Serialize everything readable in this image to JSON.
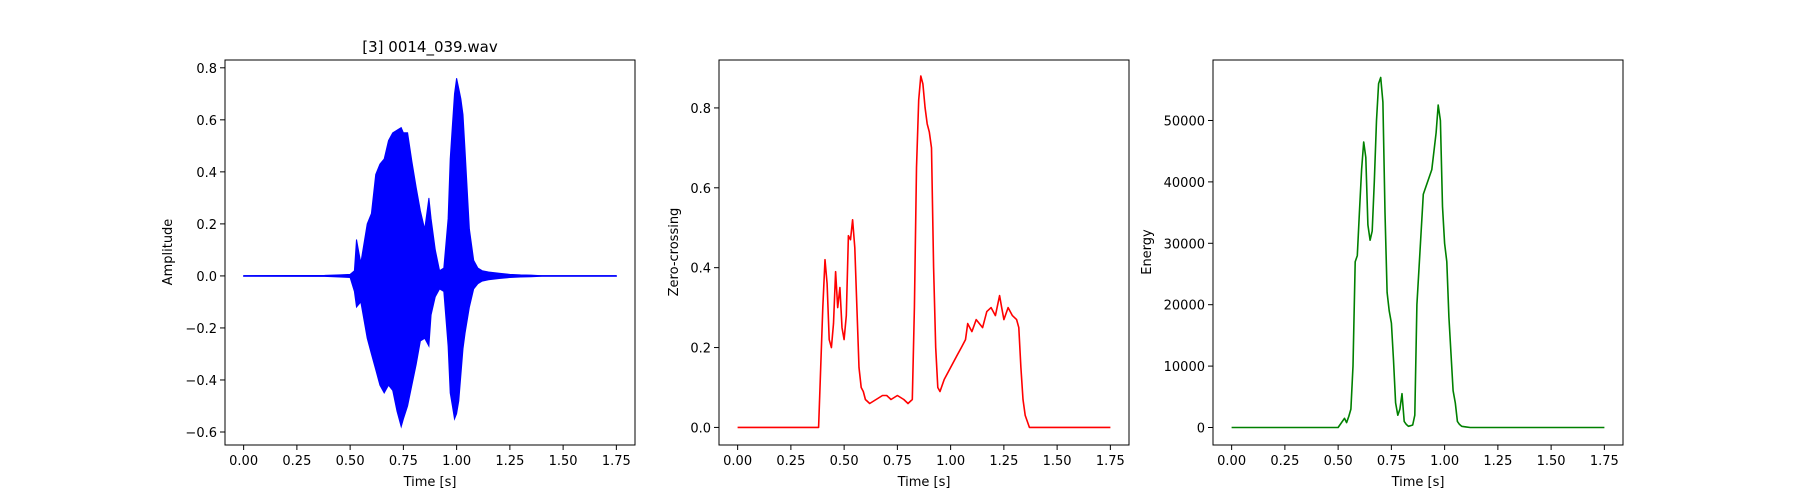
{
  "chart_data": [
    {
      "type": "line",
      "title": "[3] 0014_039.wav",
      "xlabel": "Time [s]",
      "ylabel": "Amplitude",
      "xlim": [
        -0.0875,
        1.8375
      ],
      "ylim": [
        -0.65,
        0.83
      ],
      "xticks": [
        0.0,
        0.25,
        0.5,
        0.75,
        1.0,
        1.25,
        1.5,
        1.75
      ],
      "xtick_labels": [
        "0.00",
        "0.25",
        "0.50",
        "0.75",
        "1.00",
        "1.25",
        "1.50",
        "1.75"
      ],
      "yticks": [
        -0.6,
        -0.4,
        -0.2,
        0.0,
        0.2,
        0.4,
        0.6,
        0.8
      ],
      "ytick_labels": [
        "−0.6",
        "−0.4",
        "−0.2",
        "0.0",
        "0.2",
        "0.4",
        "0.6",
        "0.8"
      ],
      "color": "#0000ff",
      "grid": false,
      "series": [
        {
          "style": "envelope",
          "x": [
            0.0,
            0.38,
            0.45,
            0.5,
            0.52,
            0.53,
            0.55,
            0.58,
            0.6,
            0.62,
            0.64,
            0.66,
            0.68,
            0.7,
            0.72,
            0.74,
            0.75,
            0.77,
            0.79,
            0.81,
            0.83,
            0.85,
            0.87,
            0.88,
            0.9,
            0.92,
            0.94,
            0.96,
            0.97,
            0.98,
            0.99,
            1.0,
            1.01,
            1.02,
            1.03,
            1.04,
            1.06,
            1.08,
            1.1,
            1.12,
            1.15,
            1.2,
            1.25,
            1.3,
            1.35,
            1.4,
            1.75
          ],
          "upper": [
            0.001,
            0.002,
            0.004,
            0.006,
            0.02,
            0.14,
            0.05,
            0.2,
            0.24,
            0.39,
            0.43,
            0.45,
            0.52,
            0.55,
            0.56,
            0.57,
            0.55,
            0.55,
            0.44,
            0.34,
            0.25,
            0.18,
            0.3,
            0.22,
            0.1,
            0.02,
            0.03,
            0.22,
            0.45,
            0.58,
            0.7,
            0.76,
            0.72,
            0.68,
            0.62,
            0.48,
            0.18,
            0.06,
            0.03,
            0.02,
            0.015,
            0.01,
            0.006,
            0.004,
            0.003,
            0.001,
            0.001
          ],
          "lower": [
            -0.001,
            -0.002,
            -0.004,
            -0.006,
            -0.06,
            -0.12,
            -0.1,
            -0.24,
            -0.3,
            -0.36,
            -0.42,
            -0.45,
            -0.42,
            -0.44,
            -0.52,
            -0.58,
            -0.55,
            -0.5,
            -0.42,
            -0.34,
            -0.25,
            -0.24,
            -0.27,
            -0.15,
            -0.08,
            -0.05,
            -0.06,
            -0.27,
            -0.45,
            -0.5,
            -0.55,
            -0.53,
            -0.48,
            -0.38,
            -0.28,
            -0.22,
            -0.12,
            -0.05,
            -0.03,
            -0.02,
            -0.015,
            -0.01,
            -0.006,
            -0.004,
            -0.003,
            -0.001,
            -0.001
          ]
        }
      ]
    },
    {
      "type": "line",
      "title": "",
      "xlabel": "Time [s]",
      "ylabel": "Zero-crossing",
      "xlim": [
        -0.0875,
        1.8375
      ],
      "ylim": [
        -0.044,
        0.92
      ],
      "xticks": [
        0.0,
        0.25,
        0.5,
        0.75,
        1.0,
        1.25,
        1.5,
        1.75
      ],
      "xtick_labels": [
        "0.00",
        "0.25",
        "0.50",
        "0.75",
        "1.00",
        "1.25",
        "1.50",
        "1.75"
      ],
      "yticks": [
        0.0,
        0.2,
        0.4,
        0.6,
        0.8
      ],
      "ytick_labels": [
        "0.0",
        "0.2",
        "0.4",
        "0.6",
        "0.8"
      ],
      "color": "#ff0000",
      "grid": false,
      "series": [
        {
          "x": [
            0.0,
            0.38,
            0.39,
            0.4,
            0.41,
            0.42,
            0.43,
            0.44,
            0.45,
            0.46,
            0.47,
            0.48,
            0.49,
            0.5,
            0.51,
            0.52,
            0.53,
            0.54,
            0.55,
            0.56,
            0.57,
            0.58,
            0.59,
            0.6,
            0.62,
            0.65,
            0.68,
            0.7,
            0.72,
            0.75,
            0.78,
            0.8,
            0.82,
            0.83,
            0.84,
            0.85,
            0.86,
            0.87,
            0.88,
            0.89,
            0.9,
            0.91,
            0.92,
            0.93,
            0.94,
            0.95,
            0.97,
            1.0,
            1.03,
            1.05,
            1.07,
            1.08,
            1.1,
            1.12,
            1.15,
            1.17,
            1.19,
            1.21,
            1.23,
            1.24,
            1.25,
            1.27,
            1.29,
            1.31,
            1.32,
            1.33,
            1.34,
            1.35,
            1.37,
            1.4,
            1.75
          ],
          "y": [
            0.0,
            0.0,
            0.15,
            0.3,
            0.42,
            0.36,
            0.22,
            0.2,
            0.26,
            0.39,
            0.3,
            0.35,
            0.25,
            0.22,
            0.28,
            0.48,
            0.47,
            0.52,
            0.45,
            0.3,
            0.15,
            0.1,
            0.09,
            0.07,
            0.06,
            0.07,
            0.08,
            0.08,
            0.07,
            0.08,
            0.07,
            0.06,
            0.07,
            0.3,
            0.65,
            0.82,
            0.88,
            0.86,
            0.8,
            0.76,
            0.74,
            0.7,
            0.4,
            0.2,
            0.1,
            0.09,
            0.12,
            0.15,
            0.18,
            0.2,
            0.22,
            0.26,
            0.24,
            0.27,
            0.25,
            0.29,
            0.3,
            0.28,
            0.33,
            0.3,
            0.27,
            0.3,
            0.28,
            0.27,
            0.25,
            0.15,
            0.07,
            0.03,
            0.0,
            0.0,
            0.0
          ]
        }
      ]
    },
    {
      "type": "line",
      "title": "",
      "xlabel": "Time [s]",
      "ylabel": "Energy",
      "xlim": [
        -0.0875,
        1.8375
      ],
      "ylim": [
        -2850,
        59850
      ],
      "xticks": [
        0.0,
        0.25,
        0.5,
        0.75,
        1.0,
        1.25,
        1.5,
        1.75
      ],
      "xtick_labels": [
        "0.00",
        "0.25",
        "0.50",
        "0.75",
        "1.00",
        "1.25",
        "1.50",
        "1.75"
      ],
      "yticks": [
        0,
        10000,
        20000,
        30000,
        40000,
        50000
      ],
      "ytick_labels": [
        "0",
        "10000",
        "20000",
        "30000",
        "40000",
        "50000"
      ],
      "color": "#008000",
      "grid": false,
      "series": [
        {
          "x": [
            0.0,
            0.5,
            0.53,
            0.54,
            0.55,
            0.56,
            0.57,
            0.58,
            0.59,
            0.6,
            0.61,
            0.62,
            0.63,
            0.64,
            0.65,
            0.66,
            0.67,
            0.68,
            0.69,
            0.7,
            0.71,
            0.72,
            0.73,
            0.74,
            0.75,
            0.76,
            0.77,
            0.78,
            0.79,
            0.8,
            0.81,
            0.82,
            0.83,
            0.84,
            0.85,
            0.86,
            0.87,
            0.9,
            0.94,
            0.96,
            0.97,
            0.98,
            0.99,
            1.0,
            1.01,
            1.02,
            1.03,
            1.04,
            1.05,
            1.06,
            1.07,
            1.08,
            1.1,
            1.12,
            1.15,
            1.75
          ],
          "y": [
            0,
            0,
            1500,
            800,
            1800,
            3000,
            10000,
            27000,
            28000,
            35000,
            42000,
            46500,
            44000,
            33000,
            30500,
            32000,
            40000,
            50000,
            56000,
            57000,
            53000,
            35000,
            22000,
            19000,
            17000,
            11000,
            4000,
            2000,
            3000,
            5500,
            1000,
            500,
            200,
            300,
            400,
            2000,
            20000,
            38000,
            42000,
            48000,
            52500,
            50000,
            36000,
            30000,
            27000,
            18000,
            12000,
            6000,
            4000,
            1000,
            500,
            200,
            100,
            0,
            0,
            0
          ]
        }
      ]
    }
  ]
}
